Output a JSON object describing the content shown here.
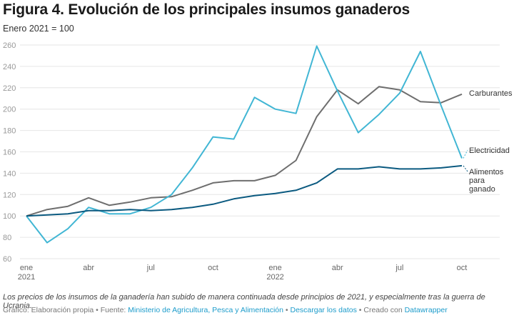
{
  "header": {
    "title": "Figura 4. Evolución de los principales insumos ganaderos",
    "subtitle": "Enero 2021 = 100"
  },
  "chart_data": {
    "type": "line",
    "title": "Figura 4. Evolución de los principales insumos ganaderos",
    "subtitle": "Enero 2021 = 100",
    "xlabel": "",
    "ylabel": "",
    "ylim": [
      60,
      260
    ],
    "yticks": [
      60,
      80,
      100,
      120,
      140,
      160,
      180,
      200,
      220,
      240,
      260
    ],
    "grid": true,
    "legend": "direct-labels-right",
    "x": [
      "2021-01",
      "2021-02",
      "2021-03",
      "2021-04",
      "2021-05",
      "2021-06",
      "2021-07",
      "2021-08",
      "2021-09",
      "2021-10",
      "2021-11",
      "2021-12",
      "2022-01",
      "2022-02",
      "2022-03",
      "2022-04",
      "2022-05",
      "2022-06",
      "2022-07",
      "2022-08",
      "2022-09",
      "2022-10"
    ],
    "xticks": [
      {
        "index": 0,
        "label": "ene",
        "sublabel": "2021"
      },
      {
        "index": 3,
        "label": "abr",
        "sublabel": ""
      },
      {
        "index": 6,
        "label": "jul",
        "sublabel": ""
      },
      {
        "index": 9,
        "label": "oct",
        "sublabel": ""
      },
      {
        "index": 12,
        "label": "ene",
        "sublabel": "2022"
      },
      {
        "index": 15,
        "label": "abr",
        "sublabel": ""
      },
      {
        "index": 18,
        "label": "jul",
        "sublabel": ""
      },
      {
        "index": 21,
        "label": "oct",
        "sublabel": ""
      }
    ],
    "series": [
      {
        "name": "Carburantes",
        "label_lines": [
          "Carburantes"
        ],
        "color": "#6e6e6e",
        "values": [
          100,
          106,
          109,
          117,
          110,
          113,
          117,
          118,
          124,
          131,
          133,
          133,
          138,
          152,
          193,
          218,
          205,
          221,
          218,
          207,
          206,
          214
        ]
      },
      {
        "name": "Electricidad",
        "label_lines": [
          "Electricidad"
        ],
        "color": "#41b6d4",
        "values": [
          100,
          75,
          88,
          108,
          102,
          102,
          108,
          120,
          145,
          174,
          172,
          211,
          200,
          196,
          259,
          217,
          178,
          195,
          215,
          254,
          203,
          154
        ]
      },
      {
        "name": "Alimentos para ganado",
        "label_lines": [
          "Alimentos",
          "para",
          "ganado"
        ],
        "color": "#0b5a80",
        "values": [
          100,
          101,
          102,
          105,
          105,
          106,
          105,
          106,
          108,
          111,
          116,
          119,
          121,
          124,
          131,
          144,
          144,
          146,
          144,
          144,
          145,
          147
        ]
      }
    ]
  },
  "footer": {
    "note": "Los precios de los insumos de la ganadería han subido de manera continuada desde principios de 2021, y especialmente tras la guerra de Ucrania.",
    "grafico_prefix": "Gráfico: Elaboración propia • Fuente: ",
    "source_link": "Ministerio de Agricultura, Pesca y Alimentación",
    "sep1": " • ",
    "download_link": "Descargar los datos",
    "sep2": " • Creado con ",
    "tool_link": "Datawrapper"
  }
}
